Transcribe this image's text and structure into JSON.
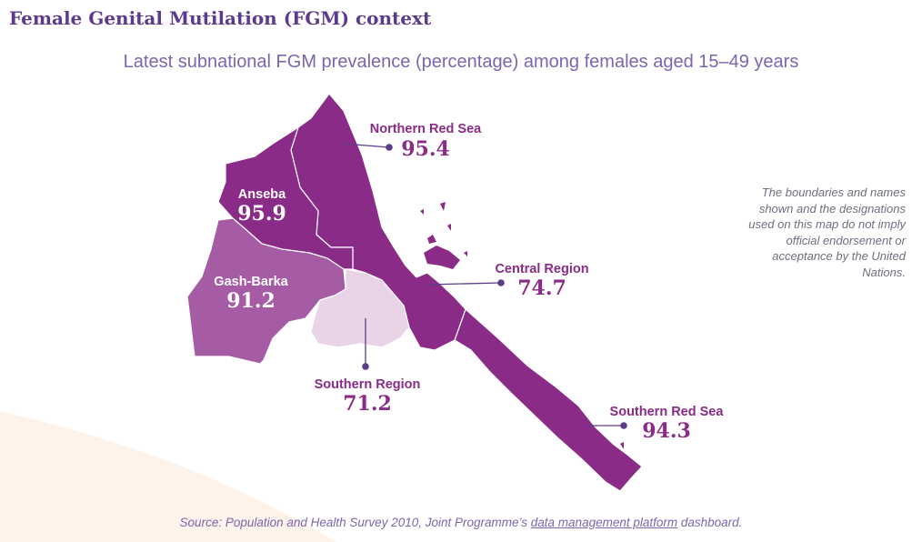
{
  "header": {
    "title": "Female Genital Mutilation (FGM) context",
    "subtitle": "Latest subnational FGM prevalence (percentage) among females aged 15–49 years"
  },
  "map": {
    "colors": {
      "dark": "#8b2b88",
      "medium": "#a65ca5",
      "light": "#e8d4e6",
      "label_dark": "#8b2b88",
      "label_light": "#ffffff",
      "leader": "#5c3c8a"
    },
    "regions": [
      {
        "id": "northern-red-sea",
        "name": "Northern Red Sea",
        "value": "95.4"
      },
      {
        "id": "anseba",
        "name": "Anseba",
        "value": "95.9"
      },
      {
        "id": "gash-barka",
        "name": "Gash-Barka",
        "value": "91.2"
      },
      {
        "id": "central-region",
        "name": "Central Region",
        "value": "74.7"
      },
      {
        "id": "southern-region",
        "name": "Southern Region",
        "value": "71.2"
      },
      {
        "id": "southern-red-sea",
        "name": "Southern Red Sea",
        "value": "94.3"
      }
    ]
  },
  "disclaimer": "The boundaries and names shown and the designations used on this map do not imply official endorsement or acceptance by the United Nations.",
  "source": {
    "prefix": "Source: Population and Health Survey 2010, Joint Programme’s ",
    "link": "data management platform",
    "suffix": " dashboard."
  }
}
